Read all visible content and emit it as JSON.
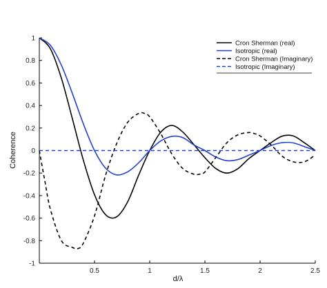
{
  "chart_data": {
    "type": "line",
    "title": "",
    "xlabel": "d/λ",
    "ylabel": "Coherence",
    "xlim": [
      0,
      2.5
    ],
    "ylim": [
      -1,
      1
    ],
    "x_ticks": [
      0.5,
      1,
      1.5,
      2,
      2.5
    ],
    "x_tick_labels": [
      "0.5",
      "1",
      "1.5",
      "2",
      "2.5"
    ],
    "y_ticks": [
      1,
      0.8,
      0.6,
      0.4,
      0.2,
      0,
      -0.2,
      -0.4,
      -0.6,
      -0.8,
      -1
    ],
    "y_tick_labels": [
      "1",
      "0.8",
      "0.6",
      "0.4",
      "0.2",
      "0",
      "-0.2",
      "-0.4",
      "-0.6",
      "-0.8",
      "-1"
    ],
    "grid": false,
    "legend_position": "top-right",
    "series": [
      {
        "name": "Cron Sherman (real)",
        "color": "#000000",
        "dash": "solid",
        "x": [
          0,
          0.1,
          0.2,
          0.3,
          0.4,
          0.5,
          0.6,
          0.7,
          0.8,
          0.9,
          1.0,
          1.1,
          1.2,
          1.3,
          1.4,
          1.5,
          1.6,
          1.7,
          1.8,
          1.9,
          2.0,
          2.1,
          2.2,
          2.3,
          2.4,
          2.5
        ],
        "y": [
          1.0,
          0.904,
          0.642,
          0.28,
          -0.089,
          -0.392,
          -0.569,
          -0.589,
          -0.456,
          -0.218,
          0.0,
          0.163,
          0.223,
          0.164,
          0.053,
          -0.063,
          -0.16,
          -0.2,
          -0.16,
          -0.07,
          0.0,
          0.07,
          0.128,
          0.13,
          0.07,
          0.0
        ]
      },
      {
        "name": "Isotropic (real)",
        "color": "#2040d0",
        "dash": "solid",
        "x": [
          0,
          0.1,
          0.2,
          0.3,
          0.4,
          0.5,
          0.6,
          0.7,
          0.8,
          0.9,
          1.0,
          1.1,
          1.2,
          1.3,
          1.4,
          1.5,
          1.6,
          1.7,
          1.8,
          1.9,
          2.0,
          2.1,
          2.2,
          2.3,
          2.4,
          2.5
        ],
        "y": [
          1.0,
          0.935,
          0.757,
          0.505,
          0.234,
          0.0,
          -0.156,
          -0.216,
          -0.189,
          -0.109,
          0.0,
          0.085,
          0.126,
          0.115,
          0.05,
          0.0,
          -0.058,
          -0.09,
          -0.08,
          -0.04,
          0.0,
          0.045,
          0.07,
          0.068,
          0.035,
          0.0
        ]
      },
      {
        "name": "Cron Sherman (Imaginary)",
        "color": "#000000",
        "dash": "dashed",
        "x": [
          0,
          0.05,
          0.1,
          0.2,
          0.3,
          0.35,
          0.4,
          0.5,
          0.6,
          0.7,
          0.8,
          0.9,
          0.95,
          1.0,
          1.1,
          1.2,
          1.3,
          1.4,
          1.45,
          1.5,
          1.6,
          1.7,
          1.8,
          1.9,
          1.95,
          2.0,
          2.1,
          2.2,
          2.3,
          2.4,
          2.5
        ],
        "y": [
          0.0,
          -0.27,
          -0.52,
          -0.8,
          -0.86,
          -0.87,
          -0.82,
          -0.58,
          -0.22,
          0.06,
          0.25,
          0.33,
          0.33,
          0.3,
          0.15,
          -0.03,
          -0.16,
          -0.21,
          -0.21,
          -0.19,
          -0.06,
          0.07,
          0.14,
          0.16,
          0.15,
          0.13,
          0.05,
          -0.05,
          -0.1,
          -0.1,
          -0.04
        ]
      },
      {
        "name": "Isotropic (Imaginary)",
        "color": "#2040d0",
        "dash": "dashed",
        "x": [
          0,
          2.5
        ],
        "y": [
          0,
          0
        ]
      }
    ]
  }
}
